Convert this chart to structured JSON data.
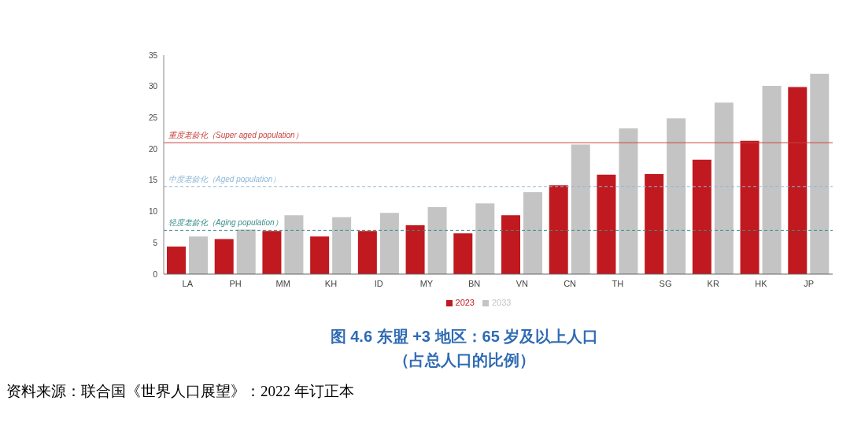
{
  "chart_data": {
    "type": "bar",
    "title": "图 4.6 东盟 +3 地区：65 岁及以上人口",
    "subtitle": "（占总人口的比例）",
    "annotations": [
      "资料来源：联合国《世界人口展望》：2022 年订正本"
    ],
    "categories": [
      "LA",
      "PH",
      "MM",
      "KH",
      "ID",
      "MY",
      "BN",
      "VN",
      "CN",
      "TH",
      "SG",
      "KR",
      "HK",
      "JP"
    ],
    "series": [
      {
        "name": "2023",
        "color": "#c0191f",
        "values": [
          4.4,
          5.6,
          6.9,
          6.0,
          6.9,
          7.8,
          6.5,
          9.4,
          14.2,
          15.9,
          16.0,
          18.3,
          21.3,
          29.9
        ]
      },
      {
        "name": "2033",
        "color": "#c4c4c4",
        "values": [
          6.0,
          7.1,
          9.4,
          9.1,
          9.8,
          10.7,
          11.3,
          13.1,
          20.7,
          23.3,
          24.9,
          27.4,
          30.1,
          32.0
        ]
      }
    ],
    "ylim": [
      0,
      35
    ],
    "yticks": [
      0,
      5,
      10,
      15,
      20,
      25,
      30,
      35
    ],
    "grid": false,
    "legend": "bottom",
    "ref_lines": [
      {
        "axis": "y",
        "value": 21,
        "label": "重度老龄化（Super aged population）",
        "color": "#c8453f",
        "line_style": "solid"
      },
      {
        "axis": "y",
        "value": 14,
        "label": "中度老龄化（Aged population）",
        "color": "#8fb8d8",
        "line_style": "dashed"
      },
      {
        "axis": "y",
        "value": 7,
        "label": "轻度老龄化（Aging population）",
        "color": "#3a8f8a",
        "line_style": "dashed"
      }
    ]
  }
}
